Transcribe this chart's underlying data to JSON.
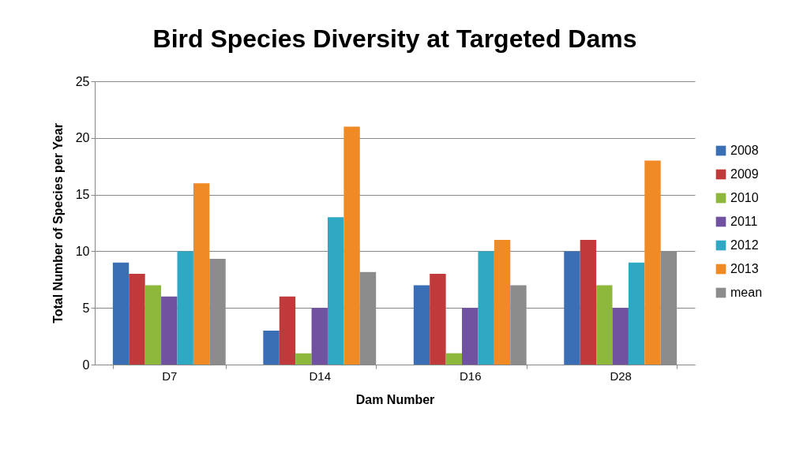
{
  "chart_data": {
    "type": "bar",
    "title": "Bird Species Diversity at Targeted Dams",
    "xlabel": "Dam Number",
    "ylabel": "Total Number of Species per Year",
    "categories": [
      "D7",
      "D14",
      "D16",
      "D28"
    ],
    "series": [
      {
        "name": "2008",
        "color": "#3a6fb5",
        "values": [
          9,
          3,
          7,
          10
        ]
      },
      {
        "name": "2009",
        "color": "#c0393b",
        "values": [
          8,
          6,
          8,
          11
        ]
      },
      {
        "name": "2010",
        "color": "#8db83c",
        "values": [
          7,
          1,
          1,
          7
        ]
      },
      {
        "name": "2011",
        "color": "#7052a0",
        "values": [
          6,
          5,
          5,
          5
        ]
      },
      {
        "name": "2012",
        "color": "#2fa8c4",
        "values": [
          10,
          13,
          10,
          9
        ]
      },
      {
        "name": "2013",
        "color": "#f08a24",
        "values": [
          16,
          21,
          11,
          18
        ]
      },
      {
        "name": "mean",
        "color": "#8c8c8c",
        "values": [
          9.33,
          8.17,
          7,
          10
        ]
      }
    ],
    "ylim": [
      0,
      25
    ],
    "yticks": [
      0,
      5,
      10,
      15,
      20,
      25
    ],
    "grid": "y",
    "legend": "right"
  }
}
